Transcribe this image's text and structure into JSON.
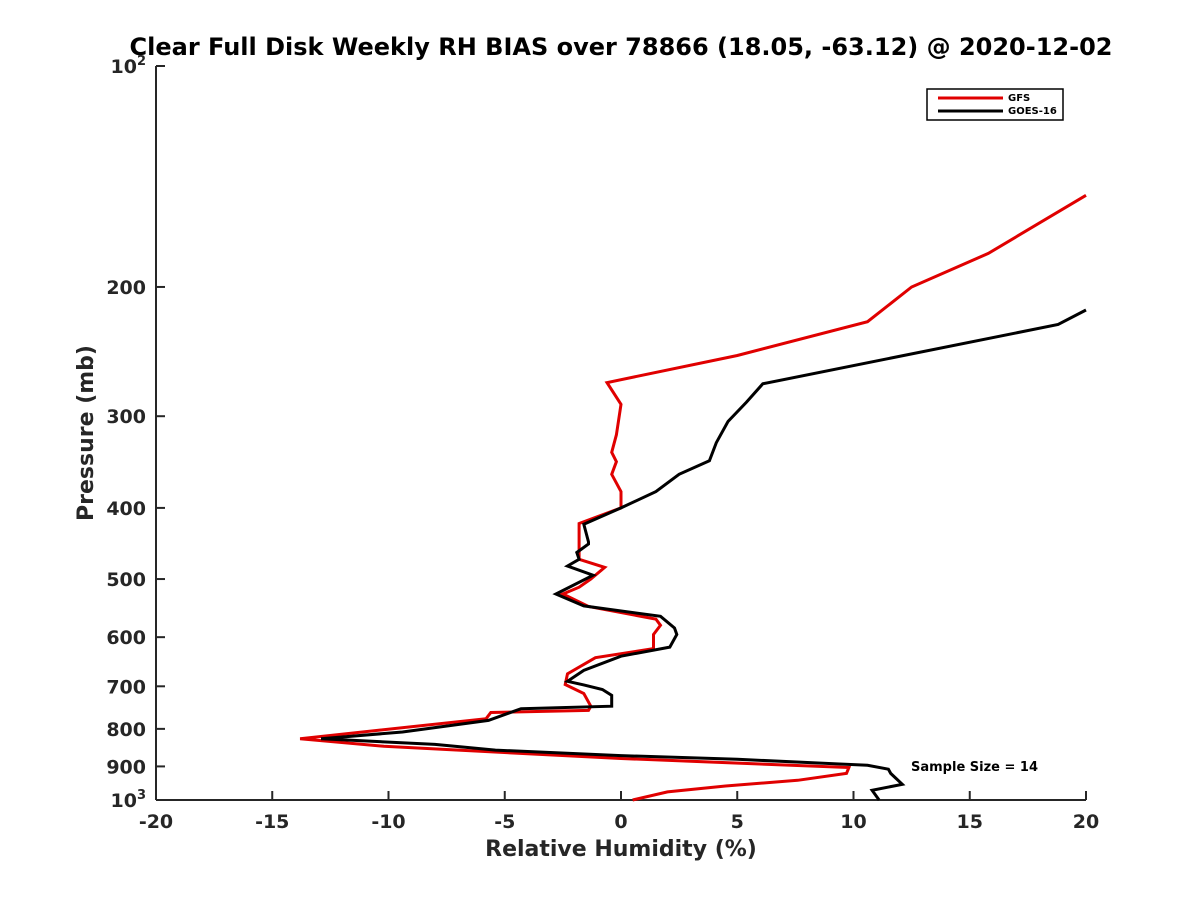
{
  "chart_data": {
    "type": "line",
    "title": "Clear Full Disk Weekly RH BIAS over 78866 (18.05, -63.12) @ 2020-12-02",
    "xlabel": "Relative Humidity (%)",
    "ylabel": "Pressure (mb)",
    "xlim": [
      -20,
      20
    ],
    "ylim": [
      100,
      1000
    ],
    "y_scale": "log",
    "y_inverted": true,
    "grid": false,
    "legend_position": "top-right",
    "x_ticks": [
      -20,
      -15,
      -10,
      -5,
      0,
      5,
      10,
      15,
      20
    ],
    "y_ticks": [
      {
        "value": 100,
        "label": "10",
        "sup": "2"
      },
      {
        "value": 200,
        "label": "200",
        "sup": ""
      },
      {
        "value": 300,
        "label": "300",
        "sup": ""
      },
      {
        "value": 400,
        "label": "400",
        "sup": ""
      },
      {
        "value": 500,
        "label": "500",
        "sup": ""
      },
      {
        "value": 600,
        "label": "600",
        "sup": ""
      },
      {
        "value": 700,
        "label": "700",
        "sup": ""
      },
      {
        "value": 800,
        "label": "800",
        "sup": ""
      },
      {
        "value": 900,
        "label": "900",
        "sup": ""
      },
      {
        "value": 1000,
        "label": "10",
        "sup": "3"
      }
    ],
    "series": [
      {
        "name": "GFS",
        "color": "#e00000",
        "points": [
          [
            20,
            150
          ],
          [
            15.8,
            180
          ],
          [
            12.5,
            200
          ],
          [
            10.6,
            223
          ],
          [
            5,
            248
          ],
          [
            -0.6,
            270
          ],
          [
            0,
            289
          ],
          [
            -0.2,
            318
          ],
          [
            -0.4,
            336
          ],
          [
            -0.2,
            346
          ],
          [
            -0.4,
            360
          ],
          [
            0,
            380
          ],
          [
            0,
            400
          ],
          [
            -1.8,
            420
          ],
          [
            -1.8,
            470
          ],
          [
            -0.7,
            482
          ],
          [
            -1.3,
            500
          ],
          [
            -1.8,
            513
          ],
          [
            -2.5,
            524
          ],
          [
            -1.4,
            545
          ],
          [
            1.5,
            567
          ],
          [
            1.7,
            578
          ],
          [
            1.4,
            595
          ],
          [
            1.4,
            622
          ],
          [
            -1.1,
            640
          ],
          [
            -2.3,
            673
          ],
          [
            -2.4,
            696
          ],
          [
            -1.6,
            716
          ],
          [
            -1.3,
            745
          ],
          [
            -1.4,
            755
          ],
          [
            -5.6,
            760
          ],
          [
            -5.8,
            775
          ],
          [
            -13.8,
            825
          ],
          [
            -10.2,
            845
          ],
          [
            0,
            878
          ],
          [
            9.8,
            903
          ],
          [
            9.7,
            920
          ],
          [
            7.6,
            940
          ],
          [
            4.5,
            957
          ],
          [
            2,
            975
          ],
          [
            0.5,
            1000
          ]
        ]
      },
      {
        "name": "GOES-16",
        "color": "#000000",
        "points": [
          [
            20,
            215
          ],
          [
            18.8,
            225
          ],
          [
            6.1,
            271
          ],
          [
            5.4,
            287
          ],
          [
            4.6,
            305
          ],
          [
            4.1,
            326
          ],
          [
            3.8,
            345
          ],
          [
            2.5,
            360
          ],
          [
            1.5,
            380
          ],
          [
            0,
            400
          ],
          [
            -1.6,
            421
          ],
          [
            -1.4,
            445
          ],
          [
            -1.4,
            448
          ],
          [
            -1.9,
            460
          ],
          [
            -1.8,
            470
          ],
          [
            -2.3,
            480
          ],
          [
            -1.2,
            494
          ],
          [
            -2.8,
            524
          ],
          [
            -1.6,
            544
          ],
          [
            1.7,
            562
          ],
          [
            2.3,
            583
          ],
          [
            2.4,
            595
          ],
          [
            2.1,
            619
          ],
          [
            0,
            637
          ],
          [
            -1.6,
            666
          ],
          [
            -2.3,
            689
          ],
          [
            -1.6,
            697
          ],
          [
            -0.8,
            707
          ],
          [
            -0.4,
            720
          ],
          [
            -0.4,
            745
          ],
          [
            -4.3,
            751
          ],
          [
            -5.7,
            779
          ],
          [
            -9.4,
            808
          ],
          [
            -12.9,
            825
          ],
          [
            -8,
            840
          ],
          [
            -5.4,
            855
          ],
          [
            0,
            870
          ],
          [
            5,
            880
          ],
          [
            10.6,
            897
          ],
          [
            11.5,
            908
          ],
          [
            11.6,
            920
          ],
          [
            12.1,
            952
          ],
          [
            10.8,
            970
          ],
          [
            11.1,
            1000
          ]
        ]
      }
    ],
    "annotations": [
      {
        "text": "Sample Size = 14"
      }
    ]
  }
}
